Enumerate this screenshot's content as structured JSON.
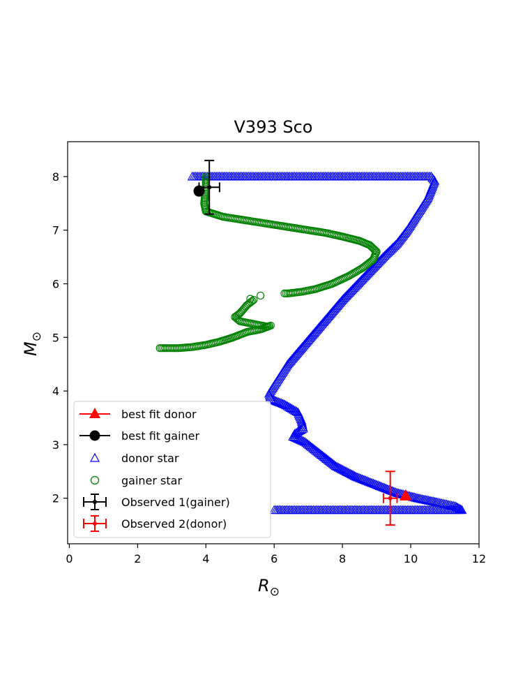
{
  "chart_data": {
    "type": "scatter",
    "title": "V393 Sco",
    "xlabel": "R",
    "xlabel_sub": "⊙",
    "ylabel": "M",
    "ylabel_sub": "⊙",
    "xlim": [
      -0.05,
      12
    ],
    "ylim": [
      1.15,
      8.65
    ],
    "xticks": [
      0,
      2,
      4,
      6,
      8,
      10,
      12
    ],
    "yticks": [
      2,
      3,
      4,
      5,
      6,
      7,
      8
    ],
    "legend_position": "lower-left",
    "legend": [
      {
        "label": "best fit donor",
        "marker": "filled-triangle-line",
        "color": "#ff0000"
      },
      {
        "label": "best fit gainer",
        "marker": "filled-circle-line",
        "color": "#000000"
      },
      {
        "label": "donor star",
        "marker": "open-triangle",
        "color": "#0000ff"
      },
      {
        "label": "gainer star",
        "marker": "open-circle",
        "color": "#008000"
      },
      {
        "label": "Observed 1(gainer)",
        "marker": "errorbar-dot",
        "color": "#000000"
      },
      {
        "label": "Observed 2(donor)",
        "marker": "errorbar-dot",
        "color": "#ff0000"
      }
    ],
    "series": [
      {
        "name": "donor star",
        "color": "#0000ff",
        "marker": "open-triangle",
        "path": [
          [
            3.6,
            8.0
          ],
          [
            4.0,
            8.0
          ],
          [
            5.0,
            8.0
          ],
          [
            6.0,
            8.0
          ],
          [
            7.0,
            8.0
          ],
          [
            8.0,
            8.0
          ],
          [
            9.0,
            8.0
          ],
          [
            10.0,
            8.0
          ],
          [
            10.6,
            8.0
          ],
          [
            10.7,
            7.92
          ],
          [
            10.5,
            7.6
          ],
          [
            10.2,
            7.3
          ],
          [
            9.9,
            7.0
          ],
          [
            9.6,
            6.75
          ],
          [
            9.2,
            6.5
          ],
          [
            8.9,
            6.3
          ],
          [
            8.6,
            6.1
          ],
          [
            8.3,
            5.9
          ],
          [
            8.0,
            5.7
          ],
          [
            7.6,
            5.4
          ],
          [
            7.2,
            5.1
          ],
          [
            6.8,
            4.8
          ],
          [
            6.4,
            4.5
          ],
          [
            6.1,
            4.2
          ],
          [
            5.85,
            3.95
          ],
          [
            5.9,
            3.85
          ],
          [
            6.3,
            3.75
          ],
          [
            6.7,
            3.6
          ],
          [
            6.8,
            3.45
          ],
          [
            6.85,
            3.3
          ],
          [
            6.6,
            3.2
          ],
          [
            6.55,
            3.15
          ],
          [
            6.9,
            3.05
          ],
          [
            7.3,
            2.85
          ],
          [
            7.8,
            2.6
          ],
          [
            8.4,
            2.4
          ],
          [
            9.0,
            2.25
          ],
          [
            9.6,
            2.1
          ],
          [
            10.2,
            2.0
          ],
          [
            10.8,
            1.92
          ],
          [
            11.3,
            1.85
          ],
          [
            11.5,
            1.78
          ],
          [
            11.0,
            1.78
          ],
          [
            10.0,
            1.78
          ],
          [
            9.0,
            1.78
          ],
          [
            8.0,
            1.78
          ],
          [
            7.0,
            1.78
          ],
          [
            6.0,
            1.78
          ]
        ]
      },
      {
        "name": "gainer star",
        "color": "#008000",
        "marker": "open-circle",
        "path": [
          [
            4.0,
            8.0
          ],
          [
            4.0,
            7.8
          ],
          [
            3.95,
            7.5
          ],
          [
            4.0,
            7.35
          ],
          [
            4.5,
            7.25
          ],
          [
            5.0,
            7.2
          ],
          [
            5.5,
            7.15
          ],
          [
            6.0,
            7.1
          ],
          [
            6.5,
            7.05
          ],
          [
            7.0,
            7.0
          ],
          [
            7.5,
            6.95
          ],
          [
            8.0,
            6.88
          ],
          [
            8.5,
            6.8
          ],
          [
            8.8,
            6.72
          ],
          [
            9.0,
            6.6
          ],
          [
            8.9,
            6.45
          ],
          [
            8.6,
            6.3
          ],
          [
            8.2,
            6.15
          ],
          [
            7.7,
            6.0
          ],
          [
            7.2,
            5.9
          ],
          [
            6.8,
            5.85
          ],
          [
            6.4,
            5.82
          ],
          [
            6.3,
            5.82
          ]
        ],
        "path2": [
          [
            5.4,
            5.7
          ],
          [
            5.2,
            5.6
          ],
          [
            5.0,
            5.45
          ],
          [
            4.85,
            5.38
          ],
          [
            5.0,
            5.3
          ],
          [
            5.4,
            5.25
          ],
          [
            5.8,
            5.2
          ],
          [
            5.9,
            5.22
          ],
          [
            5.6,
            5.15
          ],
          [
            5.2,
            5.1
          ],
          [
            4.8,
            5.0
          ],
          [
            4.4,
            4.92
          ],
          [
            4.0,
            4.86
          ],
          [
            3.6,
            4.82
          ],
          [
            3.2,
            4.8
          ],
          [
            2.65,
            4.8
          ]
        ],
        "extra_points": [
          [
            5.6,
            5.78
          ],
          [
            5.3,
            5.72
          ]
        ]
      }
    ],
    "best_fit_donor": {
      "x": 9.85,
      "y": 2.05
    },
    "best_fit_gainer": {
      "x": 3.8,
      "y": 7.73
    },
    "observed_gainer": {
      "x": 4.1,
      "y": 7.8,
      "xerr": 0.3,
      "yerr": 0.5
    },
    "observed_donor": {
      "x": 9.4,
      "y": 2.0,
      "xerr": 0.2,
      "yerr": 0.5
    }
  }
}
